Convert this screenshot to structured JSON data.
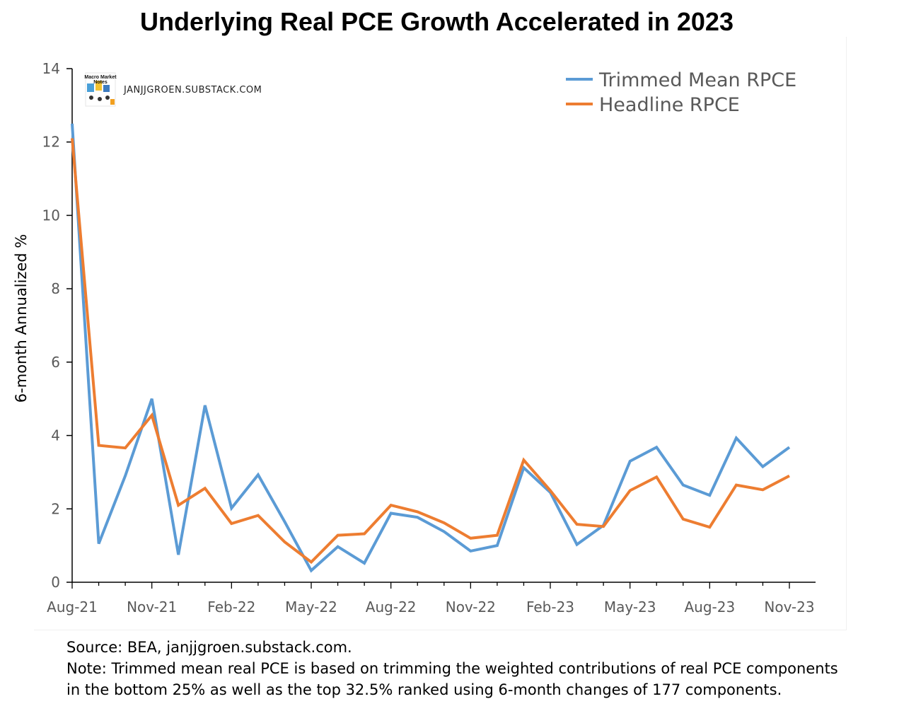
{
  "chart_data": {
    "type": "line",
    "title": "Underlying Real PCE Growth Accelerated in 2023",
    "ylabel": "6-month Annualized %",
    "xlabel": "",
    "ylim": [
      0,
      14
    ],
    "yticks": [
      "0",
      "2",
      "4",
      "6",
      "8",
      "10",
      "12",
      "14"
    ],
    "xtick_labels": [
      "Aug-21",
      "Nov-21",
      "Feb-22",
      "May-22",
      "Aug-22",
      "Nov-22",
      "Feb-23",
      "May-23",
      "Aug-23",
      "Nov-23"
    ],
    "grid": false,
    "legend_placement": "top-right",
    "x": [
      "Aug-21",
      "Sep-21",
      "Oct-21",
      "Nov-21",
      "Dec-21",
      "Jan-22",
      "Feb-22",
      "Mar-22",
      "Apr-22",
      "May-22",
      "Jun-22",
      "Jul-22",
      "Aug-22",
      "Sep-22",
      "Oct-22",
      "Nov-22",
      "Dec-22",
      "Jan-23",
      "Feb-23",
      "Mar-23",
      "Apr-23",
      "May-23",
      "Jun-23",
      "Jul-23",
      "Aug-23",
      "Sep-23",
      "Oct-23",
      "Nov-23"
    ],
    "series": [
      {
        "name": "Trimmed Mean RPCE",
        "color": "#5b9bd5",
        "values": [
          12.5,
          1.05,
          2.9,
          5.0,
          0.75,
          4.82,
          2.02,
          2.93,
          1.65,
          0.32,
          0.97,
          0.52,
          1.88,
          1.77,
          1.38,
          0.85,
          1.0,
          3.12,
          2.45,
          1.03,
          1.55,
          3.3,
          3.68,
          2.65,
          2.37,
          3.93,
          3.15,
          3.68
        ]
      },
      {
        "name": "Headline RPCE",
        "color": "#ed7d31",
        "values": [
          12.1,
          3.73,
          3.66,
          4.55,
          2.1,
          2.56,
          1.6,
          1.82,
          1.1,
          0.55,
          1.28,
          1.32,
          2.1,
          1.92,
          1.62,
          1.2,
          1.28,
          3.33,
          2.5,
          1.58,
          1.52,
          2.5,
          2.87,
          1.72,
          1.5,
          2.65,
          2.52,
          2.9
        ]
      }
    ]
  },
  "watermark": {
    "logo_text_1": "Macro Market",
    "logo_text_2": "Notes",
    "site": "JANJJGROEN.SUBSTACK.COM"
  },
  "notes": {
    "source": "Source: BEA, janjjgroen.substack.com.",
    "note_line_1": "Note: Trimmed mean real PCE is based on trimming the weighted contributions of real PCE components",
    "note_line_2": "in the bottom 25% as well as the top 32.5% ranked using 6-month changes of 177 components."
  }
}
